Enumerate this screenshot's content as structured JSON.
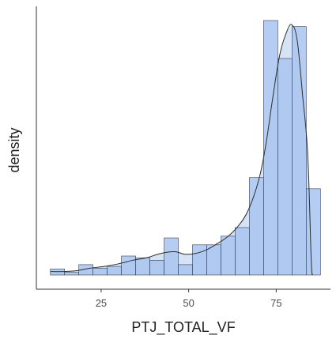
{
  "chart_data": {
    "type": "histogram",
    "xlabel": "PTJ_TOTAL_VF",
    "ylabel": "density",
    "xlim": [
      6.5,
      90.5
    ],
    "x_ticks": [
      25,
      50,
      75
    ],
    "y_ticks_visible": false,
    "grid": false,
    "bin_width": 4.06,
    "bins": [
      {
        "x0": 10.5,
        "x1": 14.56,
        "density": 0.07
      },
      {
        "x0": 14.56,
        "x1": 18.62,
        "density": 0.03
      },
      {
        "x0": 18.62,
        "x1": 22.68,
        "density": 0.12
      },
      {
        "x0": 22.68,
        "x1": 26.74,
        "density": 0.08
      },
      {
        "x0": 26.74,
        "x1": 30.8,
        "density": 0.1
      },
      {
        "x0": 30.8,
        "x1": 34.86,
        "density": 0.22
      },
      {
        "x0": 34.86,
        "x1": 38.92,
        "density": 0.2
      },
      {
        "x0": 38.92,
        "x1": 42.98,
        "density": 0.17
      },
      {
        "x0": 42.98,
        "x1": 47.04,
        "density": 0.43
      },
      {
        "x0": 47.04,
        "x1": 51.1,
        "density": 0.12
      },
      {
        "x0": 51.1,
        "x1": 55.16,
        "density": 0.35
      },
      {
        "x0": 55.16,
        "x1": 59.22,
        "density": 0.35
      },
      {
        "x0": 59.22,
        "x1": 63.28,
        "density": 0.45
      },
      {
        "x0": 63.28,
        "x1": 67.34,
        "density": 0.55
      },
      {
        "x0": 67.34,
        "x1": 71.4,
        "density": 1.13
      },
      {
        "x0": 71.4,
        "x1": 75.46,
        "density": 2.95
      },
      {
        "x0": 75.46,
        "x1": 79.52,
        "density": 2.51
      },
      {
        "x0": 79.52,
        "x1": 83.58,
        "density": 2.88
      },
      {
        "x0": 83.58,
        "x1": 87.64,
        "density": 1.0
      }
    ],
    "density_curve": [
      {
        "x": 10.5,
        "y": 0.04
      },
      {
        "x": 14,
        "y": 0.04
      },
      {
        "x": 18,
        "y": 0.05
      },
      {
        "x": 22,
        "y": 0.08
      },
      {
        "x": 26,
        "y": 0.1
      },
      {
        "x": 30,
        "y": 0.13
      },
      {
        "x": 34,
        "y": 0.17
      },
      {
        "x": 38,
        "y": 0.2
      },
      {
        "x": 42,
        "y": 0.25
      },
      {
        "x": 46,
        "y": 0.27
      },
      {
        "x": 49,
        "y": 0.24
      },
      {
        "x": 52,
        "y": 0.25
      },
      {
        "x": 55,
        "y": 0.29
      },
      {
        "x": 58,
        "y": 0.36
      },
      {
        "x": 61,
        "y": 0.44
      },
      {
        "x": 64,
        "y": 0.56
      },
      {
        "x": 67,
        "y": 0.75
      },
      {
        "x": 70,
        "y": 1.1
      },
      {
        "x": 72,
        "y": 1.5
      },
      {
        "x": 74,
        "y": 2.05
      },
      {
        "x": 76,
        "y": 2.55
      },
      {
        "x": 78,
        "y": 2.82
      },
      {
        "x": 79.5,
        "y": 2.9
      },
      {
        "x": 81,
        "y": 2.72
      },
      {
        "x": 82.5,
        "y": 2.1
      },
      {
        "x": 84,
        "y": 1.4
      },
      {
        "x": 85,
        "y": 0.18
      },
      {
        "x": 85.4,
        "y": 0.0
      }
    ],
    "colors": {
      "bar_fill": "#a8c4f0",
      "bar_stroke": "#3d3d3d",
      "density_fill": "#d6e2f5",
      "density_line": "#2e2e2e",
      "axis": "#333333"
    }
  }
}
